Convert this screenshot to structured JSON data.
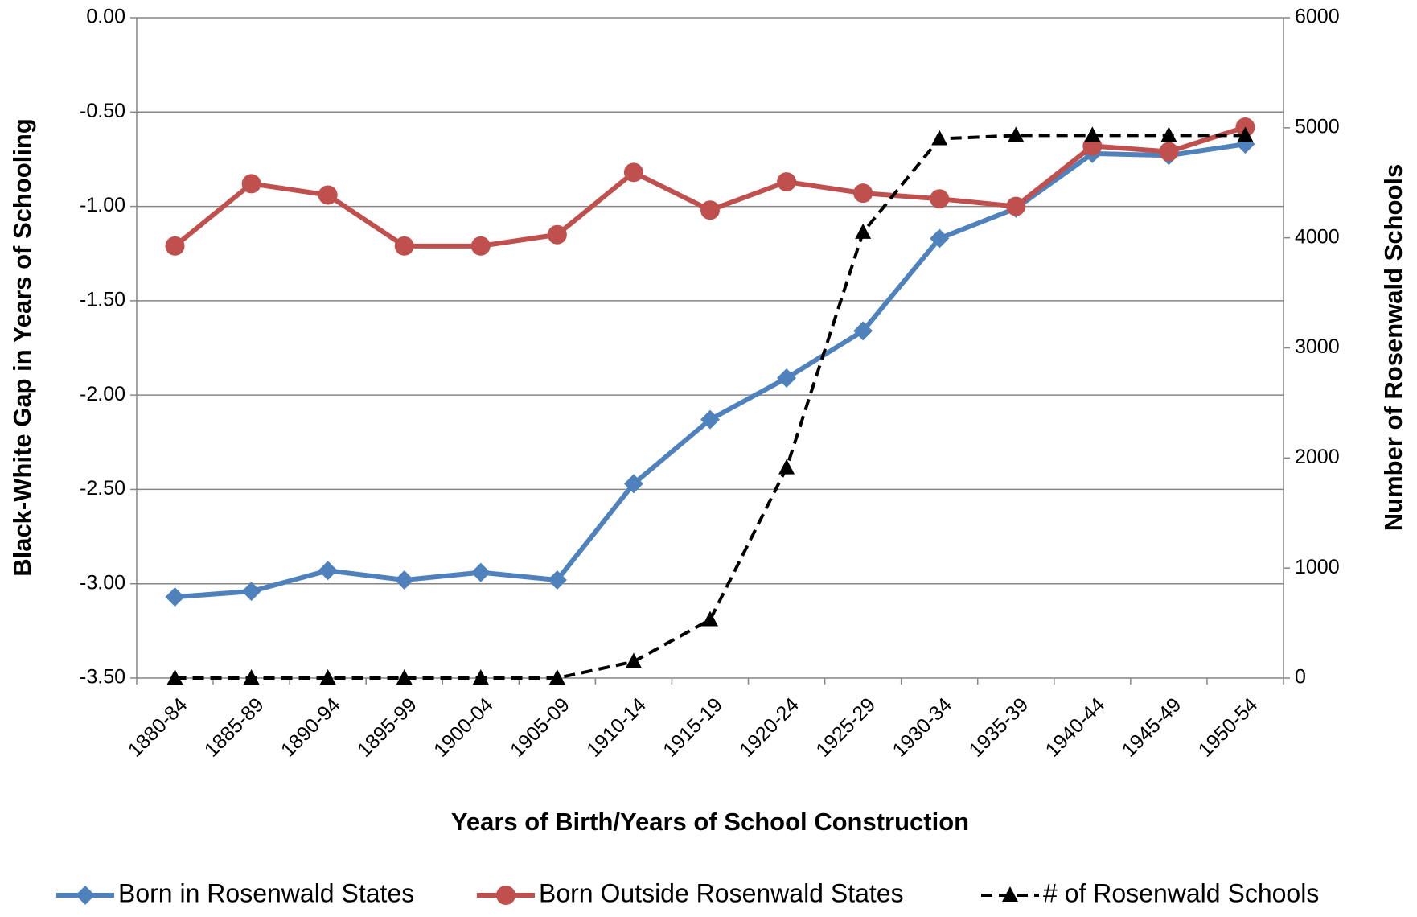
{
  "chart_data": {
    "type": "line",
    "xlabel": "Years of Birth/Years of School Construction",
    "ylabel": "Black-White Gap in Years of Schooling",
    "y2label": "Number of Rosenwald Schools",
    "categories": [
      "1880-84",
      "1885-89",
      "1890-94",
      "1895-99",
      "1900-04",
      "1905-09",
      "1910-14",
      "1915-19",
      "1920-24",
      "1925-29",
      "1930-34",
      "1935-39",
      "1940-44",
      "1945-49",
      "1950-54"
    ],
    "series": [
      {
        "name": "Born in Rosenwald States",
        "color": "#4f81bd",
        "marker": "diamond",
        "line_style": "solid",
        "values": [
          -3.07,
          -3.04,
          -2.93,
          -2.98,
          -2.94,
          -2.98,
          -2.47,
          -2.13,
          -1.91,
          -1.66,
          -1.17,
          -1.01,
          -0.72,
          -0.73,
          -0.67
        ]
      },
      {
        "name": "Born Outside Rosenwald States",
        "color": "#c0504d",
        "marker": "circle",
        "line_style": "solid",
        "values": [
          -1.21,
          -0.88,
          -0.94,
          -1.21,
          -1.21,
          -1.15,
          -0.82,
          -1.02,
          -0.87,
          -0.93,
          -0.96,
          -1.0,
          -0.68,
          -0.71,
          -0.58
        ]
      },
      {
        "name": "# of Rosenwald Schools",
        "color": "#000000",
        "marker": "triangle",
        "line_style": "dashed",
        "axis": "y2",
        "values": [
          0,
          0,
          0,
          0,
          0,
          0,
          150,
          530,
          1910,
          4050,
          4900,
          4930,
          4930,
          4930,
          4930
        ]
      }
    ],
    "ylim": [
      -3.5,
      0
    ],
    "yticks": [
      {
        "value": -3.5,
        "label": "-3.50"
      },
      {
        "value": -3,
        "label": "-3.00"
      },
      {
        "value": -2.5,
        "label": "-2.50"
      },
      {
        "value": -2,
        "label": "-2.00"
      },
      {
        "value": -1.5,
        "label": "-1.50"
      },
      {
        "value": -1,
        "label": "-1.00"
      },
      {
        "value": -0.5,
        "label": "-0.50"
      },
      {
        "value": 0,
        "label": "0.00"
      }
    ],
    "y2lim": [
      0,
      6000
    ],
    "y2ticks": [
      0,
      1000,
      2000,
      3000,
      4000,
      5000,
      6000
    ],
    "grid": true,
    "legend": "bottom"
  }
}
